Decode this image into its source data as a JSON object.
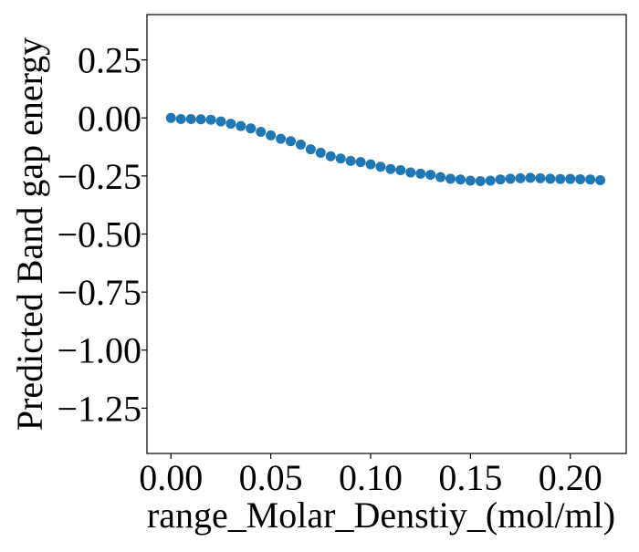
{
  "chart_data": {
    "type": "scatter",
    "title": "",
    "xlabel": "range_Molar_Denstiy_(mol/ml)",
    "ylabel": "Predicted Band gap energy",
    "xlim": [
      -0.012,
      0.228
    ],
    "ylim": [
      -1.445,
      0.445
    ],
    "xticks": [
      0.0,
      0.05,
      0.1,
      0.15,
      0.2
    ],
    "xtick_labels": [
      "0.00",
      "0.05",
      "0.10",
      "0.15",
      "0.20"
    ],
    "yticks": [
      0.25,
      0.0,
      -0.25,
      -0.5,
      -0.75,
      -1.0,
      -1.25
    ],
    "ytick_labels": [
      "0.25",
      "0.00",
      "−0.25",
      "−0.50",
      "−0.75",
      "−1.00",
      "−1.25"
    ],
    "grid": false,
    "marker_color": "#1f77b4",
    "series": [
      {
        "x": [
          0.0,
          0.005,
          0.01,
          0.015,
          0.02,
          0.025,
          0.03,
          0.035,
          0.04,
          0.045,
          0.05,
          0.055,
          0.06,
          0.065,
          0.07,
          0.075,
          0.08,
          0.085,
          0.09,
          0.095,
          0.1,
          0.105,
          0.11,
          0.115,
          0.12,
          0.125,
          0.13,
          0.135,
          0.14,
          0.145,
          0.15,
          0.155,
          0.16,
          0.165,
          0.17,
          0.175,
          0.18,
          0.185,
          0.19,
          0.195,
          0.2,
          0.205,
          0.21,
          0.215
        ],
        "y": [
          0.0,
          -0.005,
          -0.005,
          -0.006,
          -0.008,
          -0.015,
          -0.025,
          -0.035,
          -0.045,
          -0.06,
          -0.075,
          -0.09,
          -0.1,
          -0.115,
          -0.135,
          -0.15,
          -0.165,
          -0.175,
          -0.185,
          -0.19,
          -0.2,
          -0.21,
          -0.22,
          -0.225,
          -0.235,
          -0.24,
          -0.245,
          -0.255,
          -0.262,
          -0.265,
          -0.27,
          -0.272,
          -0.27,
          -0.265,
          -0.262,
          -0.26,
          -0.258,
          -0.26,
          -0.262,
          -0.263,
          -0.263,
          -0.264,
          -0.265,
          -0.268
        ]
      }
    ]
  }
}
